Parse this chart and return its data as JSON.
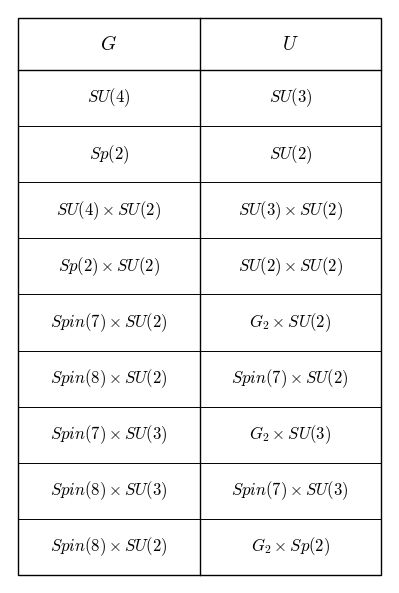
{
  "col_headers": [
    "$G$",
    "$U$"
  ],
  "rows": [
    [
      "$SU(4)$",
      "$SU(3)$"
    ],
    [
      "$Sp(2)$",
      "$SU(2)$"
    ],
    [
      "$SU(4) \\times SU(2)$",
      "$SU(3) \\times SU(2)$"
    ],
    [
      "$Sp(2) \\times SU(2)$",
      "$SU(2) \\times SU(2)$"
    ],
    [
      "$Spin(7) \\times SU(2)$",
      "$G_2 \\times SU(2)$"
    ],
    [
      "$Spin(8) \\times SU(2)$",
      "$Spin(7) \\times SU(2)$"
    ],
    [
      "$Spin(7) \\times SU(3)$",
      "$G_2 \\times SU(3)$"
    ],
    [
      "$Spin(8) \\times SU(3)$",
      "$Spin(7) \\times SU(3)$"
    ],
    [
      "$Spin(8) \\times SU(2)$",
      "$G_2 \\times Sp(2)$"
    ]
  ],
  "figsize": [
    3.99,
    5.93
  ],
  "dpi": 100,
  "bg_color": "#ffffff",
  "line_color": "#000000",
  "header_fontsize": 14,
  "cell_fontsize": 12
}
